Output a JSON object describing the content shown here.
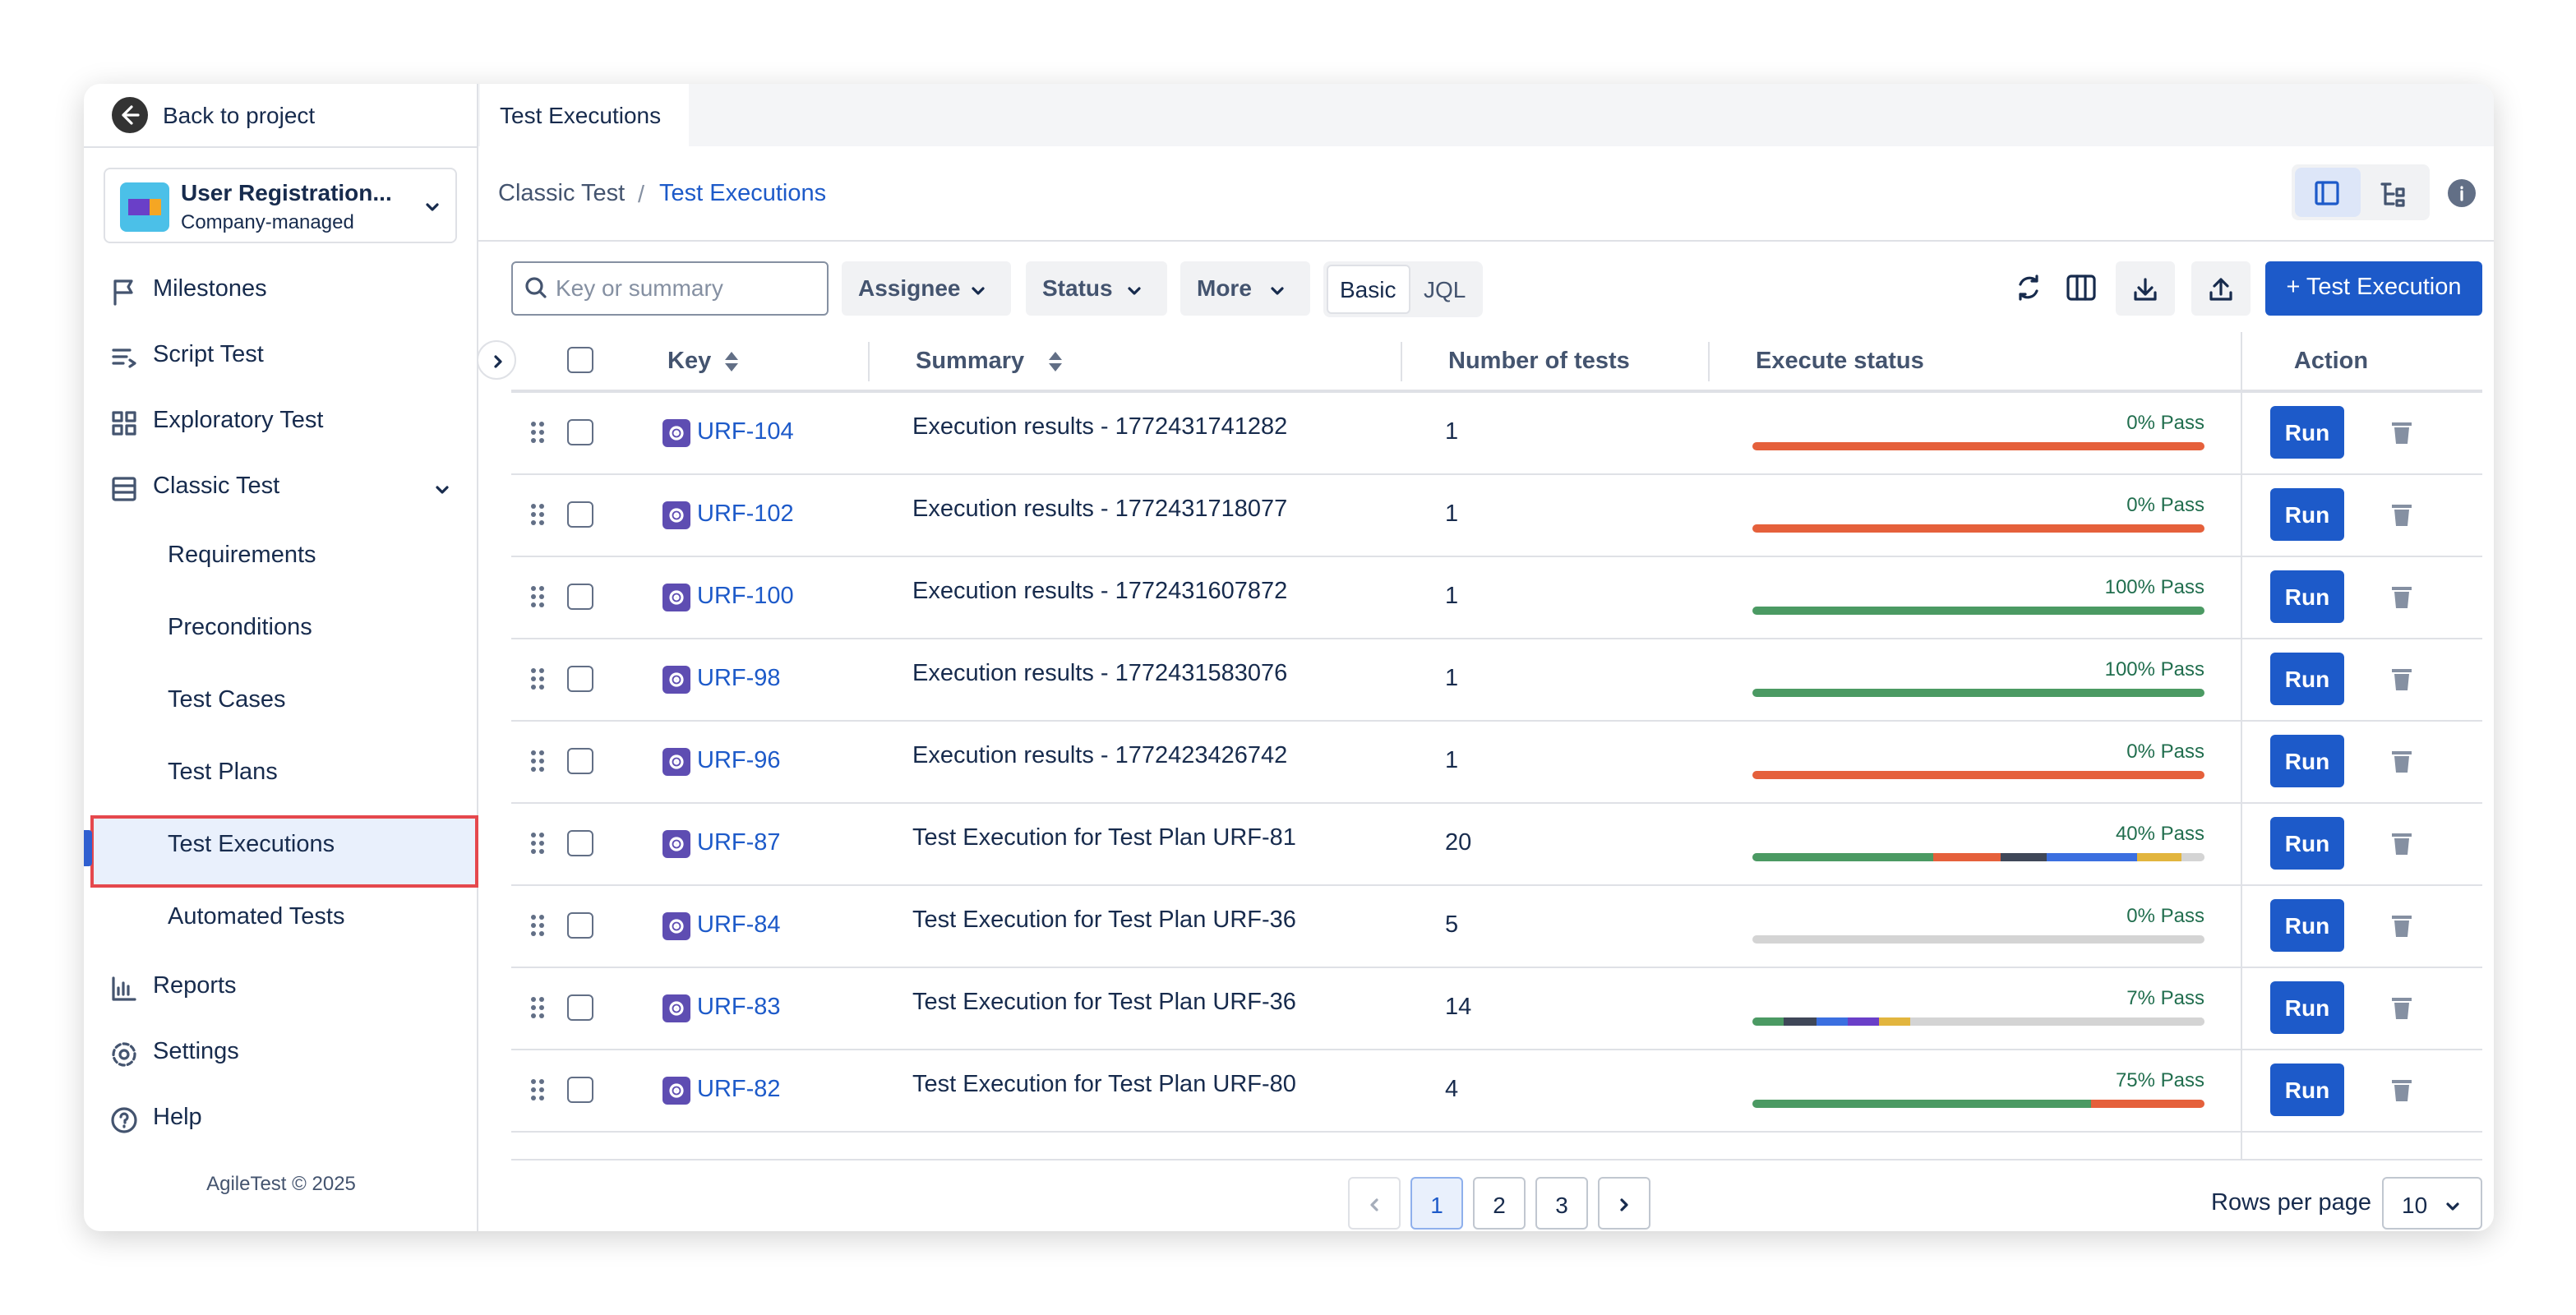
{
  "sidebar": {
    "back": "Back to project",
    "project": {
      "name": "User Registration...",
      "type": "Company-managed"
    },
    "nav": [
      {
        "label": "Milestones",
        "icon": "flag"
      },
      {
        "label": "Script Test",
        "icon": "script"
      },
      {
        "label": "Exploratory Test",
        "icon": "grid"
      },
      {
        "label": "Classic Test",
        "icon": "table",
        "children": [
          {
            "label": "Requirements"
          },
          {
            "label": "Preconditions"
          },
          {
            "label": "Test Cases"
          },
          {
            "label": "Test Plans"
          },
          {
            "label": "Test Executions",
            "active": true
          },
          {
            "label": "Automated Tests"
          }
        ]
      },
      {
        "label": "Reports",
        "icon": "chart"
      },
      {
        "label": "Settings",
        "icon": "gear"
      },
      {
        "label": "Help",
        "icon": "help"
      }
    ],
    "footer": "AgileTest © 2025"
  },
  "tab": "Test Executions",
  "breadcrumb": [
    "Classic Test",
    "Test Executions"
  ],
  "toolbar": {
    "search_placeholder": "Key or summary",
    "filters": [
      "Assignee",
      "Status",
      "More"
    ],
    "modes": [
      "Basic",
      "JQL"
    ],
    "create": "+ Test Execution"
  },
  "table": {
    "columns": [
      "Key",
      "Summary",
      "Number of tests",
      "Execute status",
      "Action"
    ],
    "rows": [
      {
        "key": "URF-104",
        "summary": "Execution results - 1772431741282",
        "tests": "1",
        "status": "0% Pass",
        "segments": [
          {
            "color": "#e5603b",
            "percent": 100
          }
        ],
        "action": "Run"
      },
      {
        "key": "URF-102",
        "summary": "Execution results - 1772431718077",
        "tests": "1",
        "status": "0% Pass",
        "segments": [
          {
            "color": "#e5603b",
            "percent": 100
          }
        ],
        "action": "Run"
      },
      {
        "key": "URF-100",
        "summary": "Execution results - 1772431607872",
        "tests": "1",
        "status": "100% Pass",
        "segments": [
          {
            "color": "#4b9a63",
            "percent": 100
          }
        ],
        "action": "Run"
      },
      {
        "key": "URF-98",
        "summary": "Execution results - 1772431583076",
        "tests": "1",
        "status": "100% Pass",
        "segments": [
          {
            "color": "#4b9a63",
            "percent": 100
          }
        ],
        "action": "Run"
      },
      {
        "key": "URF-96",
        "summary": "Execution results - 1772423426742",
        "tests": "1",
        "status": "0% Pass",
        "segments": [
          {
            "color": "#e5603b",
            "percent": 100
          }
        ],
        "action": "Run"
      },
      {
        "key": "URF-87",
        "summary": "Test Execution for Test Plan URF-81",
        "tests": "20",
        "status": "40% Pass",
        "segments": [
          {
            "color": "#4b9a63",
            "percent": 40
          },
          {
            "color": "#e5603b",
            "percent": 15
          },
          {
            "color": "#3f4758",
            "percent": 10
          },
          {
            "color": "#3b6fe0",
            "percent": 20
          },
          {
            "color": "#e2b53e",
            "percent": 10
          },
          {
            "color": "#d4d4d4",
            "percent": 5
          }
        ],
        "action": "Run"
      },
      {
        "key": "URF-84",
        "summary": "Test Execution for Test Plan URF-36",
        "tests": "5",
        "status": "0% Pass",
        "segments": [
          {
            "color": "#d4d4d4",
            "percent": 100
          }
        ],
        "action": "Run"
      },
      {
        "key": "URF-83",
        "summary": "Test Execution for Test Plan URF-36",
        "tests": "14",
        "status": "7% Pass",
        "segments": [
          {
            "color": "#4b9a63",
            "percent": 7
          },
          {
            "color": "#3f4758",
            "percent": 7
          },
          {
            "color": "#3b6fe0",
            "percent": 7
          },
          {
            "color": "#6a3fc8",
            "percent": 7
          },
          {
            "color": "#e2b53e",
            "percent": 7
          },
          {
            "color": "#d4d4d4",
            "percent": 65
          }
        ],
        "action": "Run"
      },
      {
        "key": "URF-82",
        "summary": "Test Execution for Test Plan URF-80",
        "tests": "4",
        "status": "75% Pass",
        "segments": [
          {
            "color": "#4b9a63",
            "percent": 75
          },
          {
            "color": "#e5603b",
            "percent": 25
          }
        ],
        "action": "Run"
      }
    ]
  },
  "pagination": {
    "pages": [
      "1",
      "2",
      "3"
    ],
    "current": 0,
    "rows_per_page_label": "Rows per page",
    "rows_per_page": "10"
  }
}
